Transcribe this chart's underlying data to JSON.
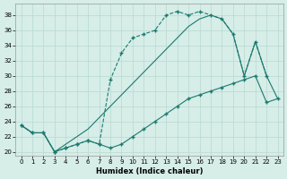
{
  "xlabel": "Humidex (Indice chaleur)",
  "bg_color": "#d6ede8",
  "line_color": "#1a7a6e",
  "grid_color": "#b8d8d0",
  "xlim": [
    -0.5,
    23.5
  ],
  "ylim": [
    19.5,
    39.5
  ],
  "yticks": [
    20,
    22,
    24,
    26,
    28,
    30,
    32,
    34,
    36,
    38
  ],
  "xticks": [
    0,
    1,
    2,
    3,
    4,
    5,
    6,
    7,
    8,
    9,
    10,
    11,
    12,
    13,
    14,
    15,
    16,
    17,
    18,
    19,
    20,
    21,
    22,
    23
  ],
  "line1_x": [
    0,
    1,
    2,
    3,
    4,
    5,
    6,
    7,
    8,
    9,
    10,
    11,
    12,
    13,
    14,
    15,
    16,
    17,
    18,
    19,
    20,
    21,
    22
  ],
  "line1_y": [
    23.5,
    22.5,
    22.5,
    20.0,
    20.5,
    21.0,
    21.5,
    21.0,
    29.5,
    33.0,
    35.0,
    35.5,
    36.0,
    38.0,
    38.5,
    38.0,
    38.5,
    38.0,
    37.5,
    35.5,
    30.0,
    34.5,
    30.0
  ],
  "line2_x": [
    0,
    1,
    2,
    3,
    4,
    5,
    6,
    7,
    8,
    9,
    10,
    11,
    12,
    13,
    14,
    15,
    16,
    17,
    18,
    19,
    20,
    21,
    22,
    23
  ],
  "line2_y": [
    23.5,
    22.5,
    22.5,
    20.0,
    20.5,
    21.0,
    21.5,
    21.0,
    20.5,
    21.0,
    22.0,
    23.0,
    24.0,
    25.0,
    26.0,
    27.0,
    27.5,
    28.0,
    28.5,
    29.0,
    29.5,
    30.0,
    26.5,
    27.0
  ],
  "line3_x": [
    0,
    1,
    2,
    3,
    4,
    5,
    6,
    7,
    8,
    9,
    10,
    11,
    12,
    13,
    14,
    15,
    16,
    17,
    18,
    19,
    20,
    21,
    22,
    23
  ],
  "line3_y": [
    23.5,
    22.5,
    22.5,
    20.0,
    21.0,
    22.0,
    23.0,
    24.5,
    26.0,
    27.5,
    29.0,
    30.5,
    32.0,
    33.5,
    35.0,
    36.5,
    37.5,
    38.0,
    37.5,
    35.5,
    30.0,
    34.5,
    30.0,
    27.0
  ]
}
